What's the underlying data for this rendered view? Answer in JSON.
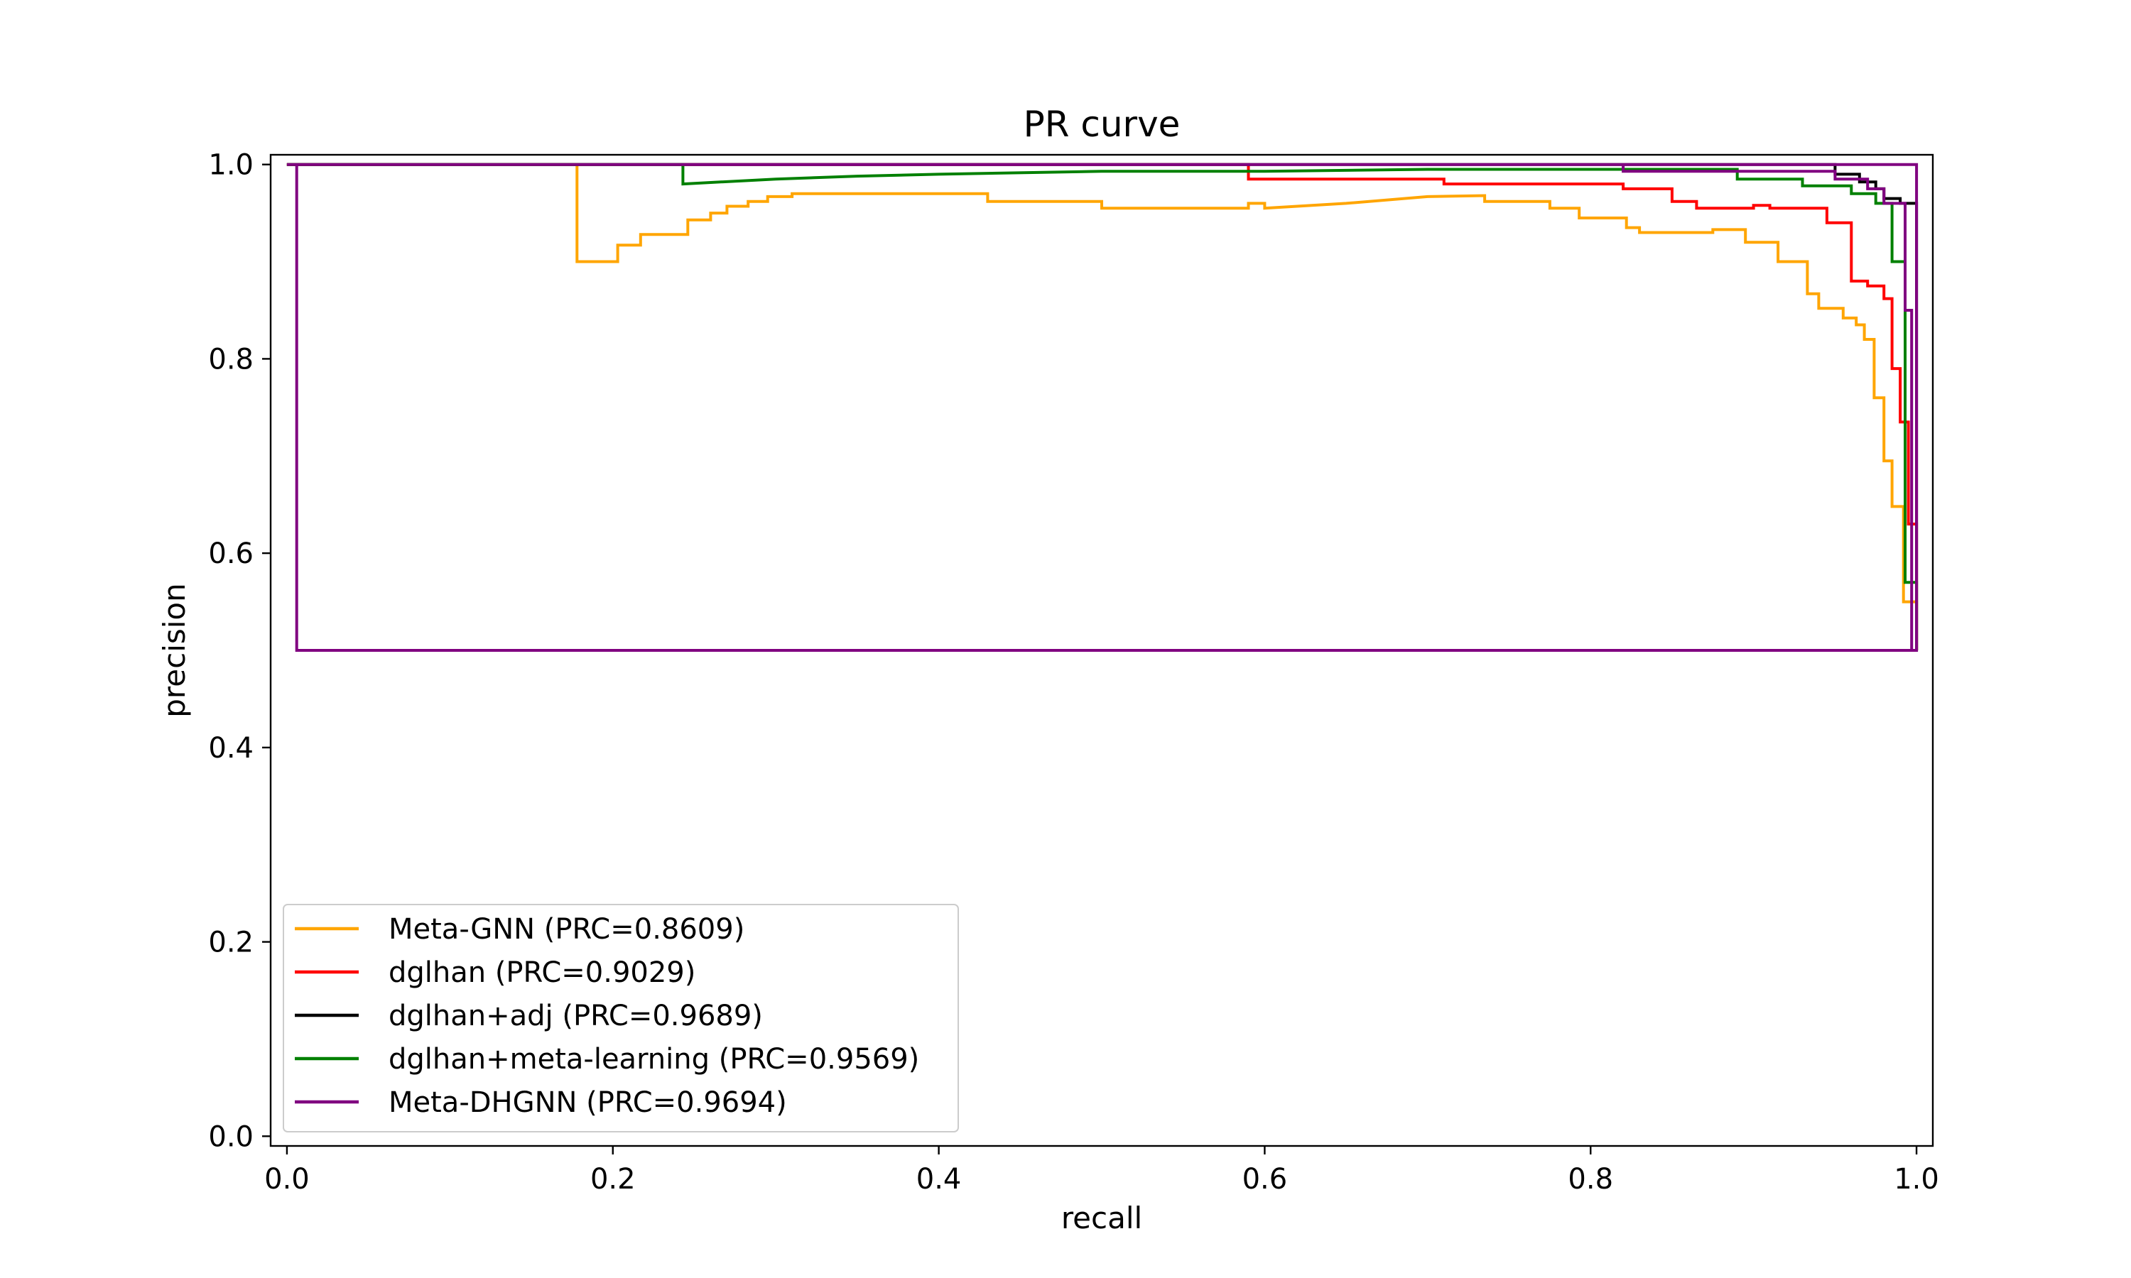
{
  "chart_data": {
    "type": "line",
    "title": "PR curve",
    "xlabel": "recall",
    "ylabel": "precision",
    "xlim": [
      -0.01,
      1.01
    ],
    "ylim": [
      -0.01,
      1.01
    ],
    "grid": false,
    "legend_position": "lower-left",
    "x_ticks": [
      "0.0",
      "0.2",
      "0.4",
      "0.6",
      "0.8",
      "1.0"
    ],
    "y_ticks": [
      "0.0",
      "0.2",
      "0.4",
      "0.6",
      "0.8",
      "1.0"
    ],
    "series": [
      {
        "name": "Meta-GNN (PRC=0.8609)",
        "color": "#FFA500",
        "points": [
          [
            0.0,
            1.0
          ],
          [
            0.178,
            1.0
          ],
          [
            0.178,
            0.9
          ],
          [
            0.203,
            0.9
          ],
          [
            0.203,
            0.917
          ],
          [
            0.217,
            0.917
          ],
          [
            0.217,
            0.928
          ],
          [
            0.246,
            0.928
          ],
          [
            0.246,
            0.943
          ],
          [
            0.26,
            0.943
          ],
          [
            0.26,
            0.95
          ],
          [
            0.27,
            0.95
          ],
          [
            0.27,
            0.957
          ],
          [
            0.283,
            0.957
          ],
          [
            0.283,
            0.962
          ],
          [
            0.295,
            0.962
          ],
          [
            0.295,
            0.967
          ],
          [
            0.31,
            0.967
          ],
          [
            0.31,
            0.97
          ],
          [
            0.43,
            0.97
          ],
          [
            0.43,
            0.962
          ],
          [
            0.5,
            0.962
          ],
          [
            0.5,
            0.955
          ],
          [
            0.59,
            0.955
          ],
          [
            0.59,
            0.96
          ],
          [
            0.6,
            0.96
          ],
          [
            0.6,
            0.955
          ],
          [
            0.65,
            0.96
          ],
          [
            0.7,
            0.967
          ],
          [
            0.735,
            0.968
          ],
          [
            0.735,
            0.962
          ],
          [
            0.775,
            0.962
          ],
          [
            0.775,
            0.955
          ],
          [
            0.793,
            0.955
          ],
          [
            0.793,
            0.945
          ],
          [
            0.822,
            0.945
          ],
          [
            0.822,
            0.935
          ],
          [
            0.83,
            0.935
          ],
          [
            0.83,
            0.93
          ],
          [
            0.875,
            0.93
          ],
          [
            0.875,
            0.933
          ],
          [
            0.895,
            0.933
          ],
          [
            0.895,
            0.92
          ],
          [
            0.915,
            0.92
          ],
          [
            0.915,
            0.9
          ],
          [
            0.933,
            0.9
          ],
          [
            0.933,
            0.867
          ],
          [
            0.94,
            0.867
          ],
          [
            0.94,
            0.852
          ],
          [
            0.955,
            0.852
          ],
          [
            0.955,
            0.842
          ],
          [
            0.963,
            0.842
          ],
          [
            0.963,
            0.835
          ],
          [
            0.968,
            0.835
          ],
          [
            0.968,
            0.82
          ],
          [
            0.974,
            0.82
          ],
          [
            0.974,
            0.76
          ],
          [
            0.98,
            0.76
          ],
          [
            0.98,
            0.695
          ],
          [
            0.985,
            0.695
          ],
          [
            0.985,
            0.648
          ],
          [
            0.992,
            0.648
          ],
          [
            0.992,
            0.55
          ],
          [
            1.0,
            0.55
          ],
          [
            1.0,
            0.5
          ]
        ]
      },
      {
        "name": "dglhan (PRC=0.9029)",
        "color": "#FF0000",
        "points": [
          [
            0.0,
            1.0
          ],
          [
            0.39,
            1.0
          ],
          [
            0.59,
            1.0
          ],
          [
            0.59,
            0.985
          ],
          [
            0.71,
            0.985
          ],
          [
            0.71,
            0.98
          ],
          [
            0.82,
            0.98
          ],
          [
            0.82,
            0.975
          ],
          [
            0.85,
            0.975
          ],
          [
            0.85,
            0.962
          ],
          [
            0.865,
            0.962
          ],
          [
            0.865,
            0.955
          ],
          [
            0.9,
            0.955
          ],
          [
            0.9,
            0.958
          ],
          [
            0.91,
            0.958
          ],
          [
            0.91,
            0.955
          ],
          [
            0.945,
            0.955
          ],
          [
            0.945,
            0.94
          ],
          [
            0.96,
            0.94
          ],
          [
            0.96,
            0.88
          ],
          [
            0.97,
            0.88
          ],
          [
            0.97,
            0.875
          ],
          [
            0.98,
            0.875
          ],
          [
            0.98,
            0.862
          ],
          [
            0.985,
            0.862
          ],
          [
            0.985,
            0.79
          ],
          [
            0.99,
            0.79
          ],
          [
            0.99,
            0.735
          ],
          [
            0.995,
            0.735
          ],
          [
            0.995,
            0.63
          ],
          [
            1.0,
            0.63
          ],
          [
            1.0,
            0.5
          ]
        ]
      },
      {
        "name": "dglhan+adj (PRC=0.9689)",
        "color": "#000000",
        "points": [
          [
            0.0,
            1.0
          ],
          [
            0.95,
            1.0
          ],
          [
            0.95,
            0.99
          ],
          [
            0.965,
            0.99
          ],
          [
            0.965,
            0.982
          ],
          [
            0.975,
            0.982
          ],
          [
            0.975,
            0.975
          ],
          [
            0.98,
            0.975
          ],
          [
            0.98,
            0.965
          ],
          [
            0.99,
            0.965
          ],
          [
            0.99,
            0.96
          ],
          [
            1.0,
            0.96
          ],
          [
            1.0,
            0.5
          ]
        ]
      },
      {
        "name": "dglhan+meta-learning (PRC=0.9569)",
        "color": "#008000",
        "points": [
          [
            0.0,
            1.0
          ],
          [
            0.243,
            1.0
          ],
          [
            0.243,
            0.98
          ],
          [
            0.3,
            0.985
          ],
          [
            0.35,
            0.988
          ],
          [
            0.4,
            0.99
          ],
          [
            0.5,
            0.993
          ],
          [
            0.6,
            0.993
          ],
          [
            0.7,
            0.995
          ],
          [
            0.8,
            0.995
          ],
          [
            0.89,
            0.995
          ],
          [
            0.89,
            0.985
          ],
          [
            0.93,
            0.985
          ],
          [
            0.93,
            0.978
          ],
          [
            0.96,
            0.978
          ],
          [
            0.96,
            0.97
          ],
          [
            0.975,
            0.97
          ],
          [
            0.975,
            0.96
          ],
          [
            0.985,
            0.96
          ],
          [
            0.985,
            0.9
          ],
          [
            0.993,
            0.9
          ],
          [
            0.993,
            0.57
          ],
          [
            1.0,
            0.57
          ],
          [
            1.0,
            0.5
          ]
        ]
      },
      {
        "name": "Meta-DHGNN (PRC=0.9694)",
        "color": "#800080",
        "points": [
          [
            0.0,
            1.0
          ],
          [
            0.006,
            1.0
          ],
          [
            0.006,
            0.5
          ],
          [
            1.0,
            0.5
          ],
          [
            1.0,
            1.0
          ],
          [
            0.006,
            1.0
          ],
          [
            0.82,
            1.0
          ],
          [
            0.82,
            0.993
          ],
          [
            0.95,
            0.993
          ],
          [
            0.95,
            0.985
          ],
          [
            0.97,
            0.985
          ],
          [
            0.97,
            0.975
          ],
          [
            0.98,
            0.975
          ],
          [
            0.98,
            0.96
          ],
          [
            0.993,
            0.96
          ],
          [
            0.993,
            0.85
          ],
          [
            0.997,
            0.85
          ],
          [
            0.997,
            0.5
          ]
        ]
      }
    ]
  }
}
